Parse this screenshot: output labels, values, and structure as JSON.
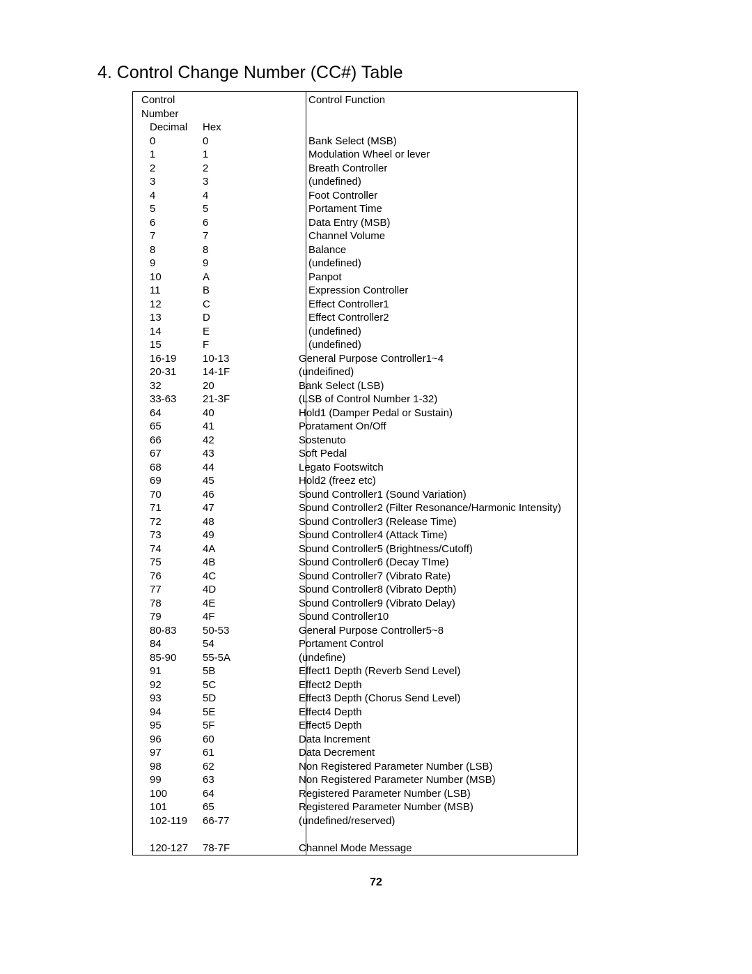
{
  "title": "4. Control Change Number (CC#) Table",
  "header": {
    "col1": "Control Number",
    "col2": "Control Function"
  },
  "subheader": {
    "dec": "Decimal",
    "hex": "Hex"
  },
  "rows": [
    {
      "dec": "0",
      "hex": "0",
      "func": "Bank Select (MSB)"
    },
    {
      "dec": "1",
      "hex": "1",
      "func": "Modulation Wheel or lever"
    },
    {
      "dec": "2",
      "hex": "2",
      "func": "Breath Controller"
    },
    {
      "dec": "3",
      "hex": "3",
      "func": "(undefined)"
    },
    {
      "dec": "4",
      "hex": "4",
      "func": "Foot Controller"
    },
    {
      "dec": "5",
      "hex": "5",
      "func": "Portament Time"
    },
    {
      "dec": "6",
      "hex": "6",
      "func": "Data Entry (MSB)"
    },
    {
      "dec": "7",
      "hex": "7",
      "func": "Channel Volume"
    },
    {
      "dec": "8",
      "hex": "8",
      "func": "Balance"
    },
    {
      "dec": "9",
      "hex": "9",
      "func": "(undefined)"
    },
    {
      "dec": "10",
      "hex": "A",
      "func": "Panpot"
    },
    {
      "dec": "11",
      "hex": "B",
      "func": "Expression Controller"
    },
    {
      "dec": "12",
      "hex": "C",
      "func": "Effect Controller1"
    },
    {
      "dec": "13",
      "hex": "D",
      "func": "Effect Controller2"
    },
    {
      "dec": "14",
      "hex": "E",
      "func": "(undefined)"
    },
    {
      "dec": "15",
      "hex": "F",
      "func": "(undefined)"
    },
    {
      "dec": "16-19",
      "hex": "10-13",
      "func": "General Purpose Controller1~4",
      "noindent": true
    },
    {
      "dec": "20-31",
      "hex": "14-1F",
      "func": "(undeifined)",
      "noindent": true
    },
    {
      "dec": "32",
      "hex": "20",
      "func": "Bank Select (LSB)",
      "noindent": true
    },
    {
      "dec": "33-63",
      "hex": "21-3F",
      "func": "(LSB of Control Number 1-32)",
      "noindent": true
    },
    {
      "dec": "64",
      "hex": "40",
      "func": "Hold1 (Damper Pedal or Sustain)",
      "noindent": true
    },
    {
      "dec": "65",
      "hex": "41",
      "func": "Poratament On/Off",
      "noindent": true
    },
    {
      "dec": "66",
      "hex": "42",
      "func": "Sostenuto",
      "noindent": true
    },
    {
      "dec": "67",
      "hex": "43",
      "func": "Soft Pedal",
      "noindent": true
    },
    {
      "dec": "68",
      "hex": "44",
      "func": "Legato Footswitch",
      "noindent": true
    },
    {
      "dec": "69",
      "hex": "45",
      "func": "Hold2 (freez etc)",
      "noindent": true
    },
    {
      "dec": "70",
      "hex": "46",
      "func": "Sound Controller1 (Sound Variation)",
      "noindent": true
    },
    {
      "dec": "71",
      "hex": "47",
      "func": "Sound Controller2 (Filter Resonance/Harmonic Intensity)",
      "noindent": true
    },
    {
      "dec": "72",
      "hex": "48",
      "func": "Sound Controller3 (Release Time)",
      "noindent": true
    },
    {
      "dec": "73",
      "hex": "49",
      "func": "Sound Controller4 (Attack Time)",
      "noindent": true
    },
    {
      "dec": "74",
      "hex": "4A",
      "func": "Sound Controller5 (Brightness/Cutoff)",
      "noindent": true
    },
    {
      "dec": "75",
      "hex": "4B",
      "func": "Sound Controller6 (Decay TIme)",
      "noindent": true
    },
    {
      "dec": "76",
      "hex": "4C",
      "func": "Sound Controller7 (Vibrato Rate)",
      "noindent": true
    },
    {
      "dec": "77",
      "hex": "4D",
      "func": "Sound Controller8 (Vibrato Depth)",
      "noindent": true
    },
    {
      "dec": "78",
      "hex": "4E",
      "func": "Sound Controller9 (Vibrato Delay)",
      "noindent": true
    },
    {
      "dec": "79",
      "hex": "4F",
      "func": "Sound Controller10",
      "noindent": true
    },
    {
      "dec": "80-83",
      "hex": "50-53",
      "func": "General Purpose Controller5~8",
      "noindent": true
    },
    {
      "dec": "84",
      "hex": "54",
      "func": "Portament Control",
      "noindent": true
    },
    {
      "dec": "85-90",
      "hex": "55-5A",
      "func": "(undefine)",
      "noindent": true
    },
    {
      "dec": "91",
      "hex": "5B",
      "func": "Effect1 Depth  (Reverb Send Level)",
      "noindent": true
    },
    {
      "dec": "92",
      "hex": "5C",
      "func": "Effect2 Depth",
      "noindent": true
    },
    {
      "dec": "93",
      "hex": "5D",
      "func": "Effect3 Depth  (Chorus Send Level)",
      "noindent": true
    },
    {
      "dec": "94",
      "hex": "5E",
      "func": "Effect4 Depth",
      "noindent": true
    },
    {
      "dec": "95",
      "hex": "5F",
      "func": "Effect5 Depth",
      "noindent": true
    },
    {
      "dec": "96",
      "hex": "60",
      "func": "Data Increment",
      "noindent": true
    },
    {
      "dec": "97",
      "hex": "61",
      "func": "Data Decrement",
      "noindent": true
    },
    {
      "dec": "98",
      "hex": "62",
      "func": "Non Registered Parameter Number (LSB)",
      "noindent": true
    },
    {
      "dec": "99",
      "hex": "63",
      "func": "Non Registered Parameter Number (MSB)",
      "noindent": true
    },
    {
      "dec": "100",
      "hex": "64",
      "func": "Registered Parameter Number (LSB)",
      "noindent": true
    },
    {
      "dec": "101",
      "hex": "65",
      "func": "Registered Parameter Number (MSB)",
      "noindent": true
    },
    {
      "dec": "102-119",
      "hex": "66-77",
      "func": " (undefined/reserved)",
      "noindent": true
    },
    {
      "blank": true
    },
    {
      "dec": "120-127",
      "hex": "78-7F",
      "func": "Channel Mode Message",
      "noindent": true
    }
  ],
  "page_number": "72"
}
